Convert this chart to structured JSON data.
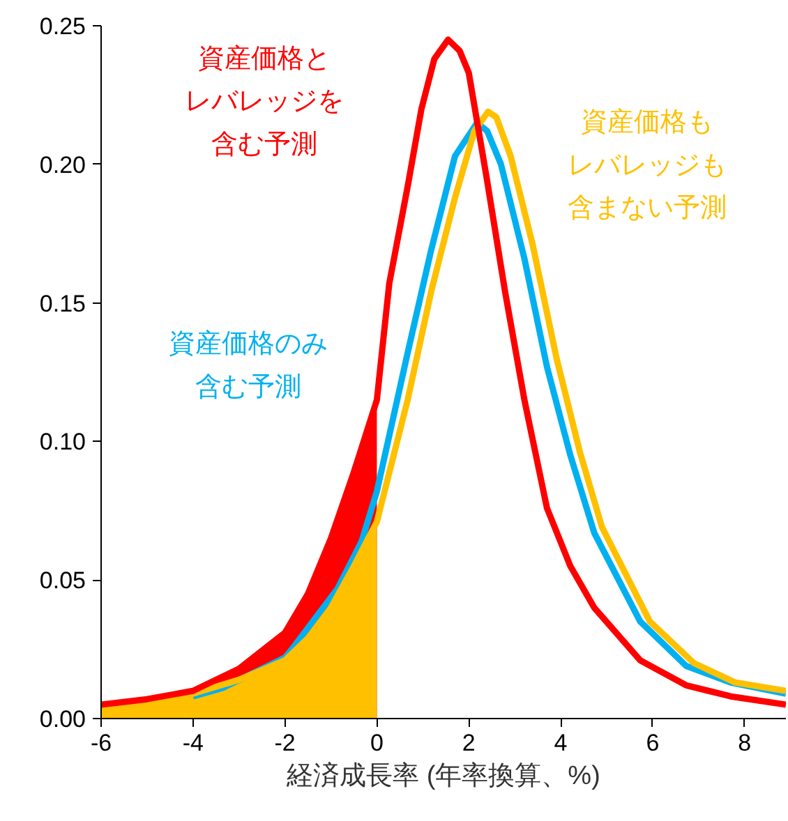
{
  "chart_data": {
    "type": "line",
    "xlabel": "経済成長率 (年率換算、%)",
    "xlim": [
      -6,
      8.9
    ],
    "ylim": [
      0,
      0.25
    ],
    "xticks": [
      -6,
      -4,
      -2,
      0,
      2,
      4,
      6,
      8
    ],
    "yticks": [
      {
        "value": 0,
        "label": "0.00"
      },
      {
        "value": 0.05,
        "label": "0.05"
      },
      {
        "value": 0.1,
        "label": "0.10"
      },
      {
        "value": 0.15,
        "label": "0.15"
      },
      {
        "value": 0.2,
        "label": "0.20"
      },
      {
        "value": 0.25,
        "label": "0.25"
      }
    ],
    "grid": false,
    "series": [
      {
        "type": "area",
        "color": "#ff0000",
        "x": [
          -6,
          -5,
          -4,
          -3,
          -2,
          -1.5,
          -1,
          -0.5,
          0
        ],
        "values": [
          0.005,
          0.007,
          0.01,
          0.018,
          0.031,
          0.045,
          0.065,
          0.089,
          0.115
        ]
      },
      {
        "type": "area",
        "color": "#ffc000",
        "x": [
          -6,
          -5,
          -4,
          -3,
          -2,
          -1.5,
          -1,
          -0.5,
          0
        ],
        "values": [
          0.003,
          0.006,
          0.009,
          0.014,
          0.021,
          0.029,
          0.04,
          0.055,
          0.071
        ]
      },
      {
        "name": "資産価格とレバレッジを含む予測",
        "color": "#ff0000",
        "x": [
          -6,
          -5,
          -4,
          -3,
          -2,
          -1.5,
          -1,
          -0.5,
          0,
          0.27,
          0.67,
          0.97,
          1.25,
          1.55,
          1.8,
          2.0,
          2.39,
          2.79,
          3.21,
          3.7,
          4.21,
          4.73,
          5.73,
          6.73,
          7.7,
          8.9
        ],
        "values": [
          0.005,
          0.007,
          0.01,
          0.018,
          0.031,
          0.045,
          0.065,
          0.089,
          0.115,
          0.157,
          0.192,
          0.22,
          0.238,
          0.245,
          0.241,
          0.233,
          0.195,
          0.154,
          0.115,
          0.076,
          0.055,
          0.04,
          0.021,
          0.012,
          0.008,
          0.005
        ]
      },
      {
        "name": "資産価格のみ含む予測",
        "color": "#00b0f0",
        "x": [
          -4,
          -3.36,
          -2,
          -1.85,
          -0.85,
          -0.33,
          0,
          0.67,
          1.18,
          1.7,
          2.18,
          2.4,
          2.7,
          3.21,
          3.7,
          4.21,
          4.73,
          5.73,
          6.73,
          7.7,
          8.9
        ],
        "values": [
          0.008,
          0.011,
          0.022,
          0.025,
          0.047,
          0.064,
          0.082,
          0.132,
          0.169,
          0.203,
          0.215,
          0.212,
          0.2,
          0.166,
          0.127,
          0.095,
          0.067,
          0.035,
          0.019,
          0.013,
          0.009
        ]
      },
      {
        "name": "資産価格もレバレッジも含まない予測",
        "color": "#ffc000",
        "x": [
          -6,
          -5,
          -4,
          -3,
          -2,
          -1.5,
          -1,
          -0.5,
          0,
          0.67,
          1.18,
          1.7,
          2.12,
          2.42,
          2.6,
          2.91,
          3.39,
          3.91,
          4.42,
          4.9,
          5.94,
          6.9,
          7.8,
          8.9
        ],
        "values": [
          0.003,
          0.006,
          0.009,
          0.014,
          0.021,
          0.029,
          0.04,
          0.055,
          0.071,
          0.115,
          0.154,
          0.188,
          0.212,
          0.219,
          0.217,
          0.203,
          0.171,
          0.13,
          0.096,
          0.069,
          0.035,
          0.02,
          0.013,
          0.01
        ]
      }
    ]
  }
}
